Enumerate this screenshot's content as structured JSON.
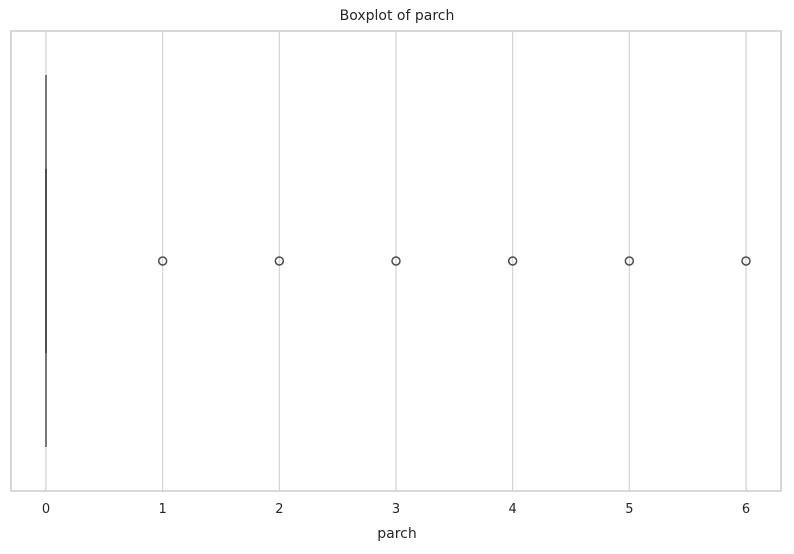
{
  "chart_data": {
    "type": "boxplot",
    "orientation": "horizontal",
    "title": "Boxplot of parch",
    "xlabel": "parch",
    "ylabel": "",
    "xlim": [
      -0.3,
      6.3
    ],
    "xticks": [
      0,
      1,
      2,
      3,
      4,
      5,
      6
    ],
    "xtick_labels": [
      "0",
      "1",
      "2",
      "3",
      "4",
      "5",
      "6"
    ],
    "grid": "vertical",
    "box": {
      "min": 0,
      "q1": 0,
      "median": 0,
      "q3": 0,
      "max": 0
    },
    "outliers": [
      1,
      2,
      3,
      4,
      5,
      6
    ],
    "colors": {
      "grid": "#d3d3d3",
      "box": "#4d4d4d",
      "frame": "#cccccc",
      "text": "#262626"
    }
  }
}
